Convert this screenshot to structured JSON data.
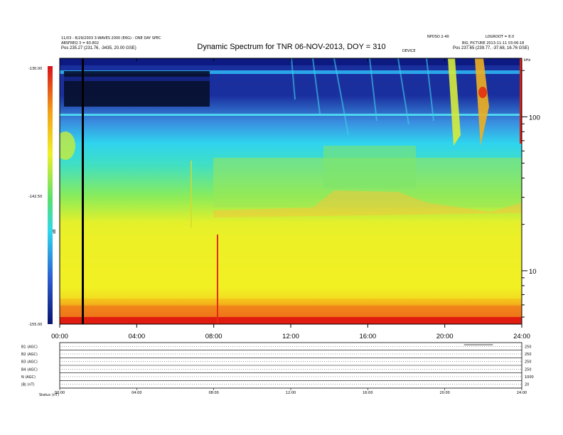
{
  "chart_data": {
    "type": "heatmap",
    "title": "Dynamic Spectrum for TNR 06-NOV-2013, DOY = 310",
    "header_left": [
      "11/03 - 8/29/2003 3-WAVES 2000 (E6G) - ONE DAY SPEC",
      "ABSFREQ 3 = 60.802",
      "Pos   235.27 (231.76, -3435, 20.00 GSE)"
    ],
    "header_right_top": [
      "NPOSO 2-40",
      "LOGROOT = 8.0"
    ],
    "header_right": [
      "BIG_PICTURE 2013-11-11 03:06:18",
      "Pos   237.65 (239.77, -37.68, 16.76 GSE)"
    ],
    "header_center_small": "DEVICE",
    "x_tick_labels": [
      "00:00",
      "04:00",
      "08:00",
      "12:00",
      "16:00",
      "20:00",
      "24:00"
    ],
    "x_range_hours": [
      0,
      24
    ],
    "y_right_ticks": [
      {
        "label": "100",
        "value": 100
      },
      {
        "label": "10",
        "value": 10
      }
    ],
    "y_right_scale": "log",
    "y_right_range": [
      4.5,
      240
    ],
    "y_right_top_label": "kHz",
    "colorbar_labels": [
      "-130.00",
      "-142.50",
      "-155.00"
    ],
    "colorbar_range": [
      -155,
      -130
    ],
    "colorbar_axis_label": "dB",
    "colors": {
      "deep": "#0b1a8a",
      "blue": "#2f6fd6",
      "cyan": "#28d2ee",
      "green": "#62ea7e",
      "yellow": "#eef028",
      "orange": "#f2a41a",
      "red": "#e11a12"
    },
    "events": [
      {
        "type": "data-gap",
        "time_hours": 1.2
      },
      {
        "type": "type-III-burst",
        "time_hours": 20.3
      },
      {
        "type": "type-III-burst",
        "time_hours": 21.5
      }
    ],
    "sub_panels": [
      {
        "label": "B1 (AGC)",
        "right": "250"
      },
      {
        "label": "B2 (AGC)",
        "right": "250"
      },
      {
        "label": "B3 (AGC)",
        "right": "250"
      },
      {
        "label": "B4 (AGC)",
        "right": "250"
      },
      {
        "label": "N (AGC)",
        "right": "1000"
      },
      {
        "label": "|B| (nT)",
        "right": "20"
      }
    ],
    "sub_x_ticks": [
      "00:00",
      "04:00",
      "08:00",
      "12:00",
      "16:00",
      "20:00",
      "24:00"
    ],
    "sub_footer_label": "Status",
    "sub_footer_unit": "(nT)"
  }
}
